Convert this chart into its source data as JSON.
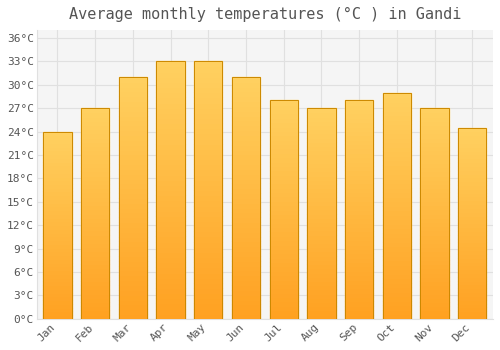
{
  "title": "Average monthly temperatures (°C ) in Gandi",
  "months": [
    "Jan",
    "Feb",
    "Mar",
    "Apr",
    "May",
    "Jun",
    "Jul",
    "Aug",
    "Sep",
    "Oct",
    "Nov",
    "Dec"
  ],
  "temperatures": [
    24,
    27,
    31,
    33,
    33,
    31,
    28,
    27,
    28,
    29,
    27,
    24.5
  ],
  "bar_color_top": "#FFD060",
  "bar_color_bottom": "#FFA020",
  "bar_edge_color": "#CC8800",
  "background_color": "#ffffff",
  "plot_bg_color": "#f5f5f5",
  "grid_color": "#e0e0e0",
  "text_color": "#555555",
  "ylim": [
    0,
    37
  ],
  "yticks": [
    0,
    3,
    6,
    9,
    12,
    15,
    18,
    21,
    24,
    27,
    30,
    33,
    36
  ],
  "title_fontsize": 11,
  "tick_fontsize": 8,
  "font_family": "monospace"
}
